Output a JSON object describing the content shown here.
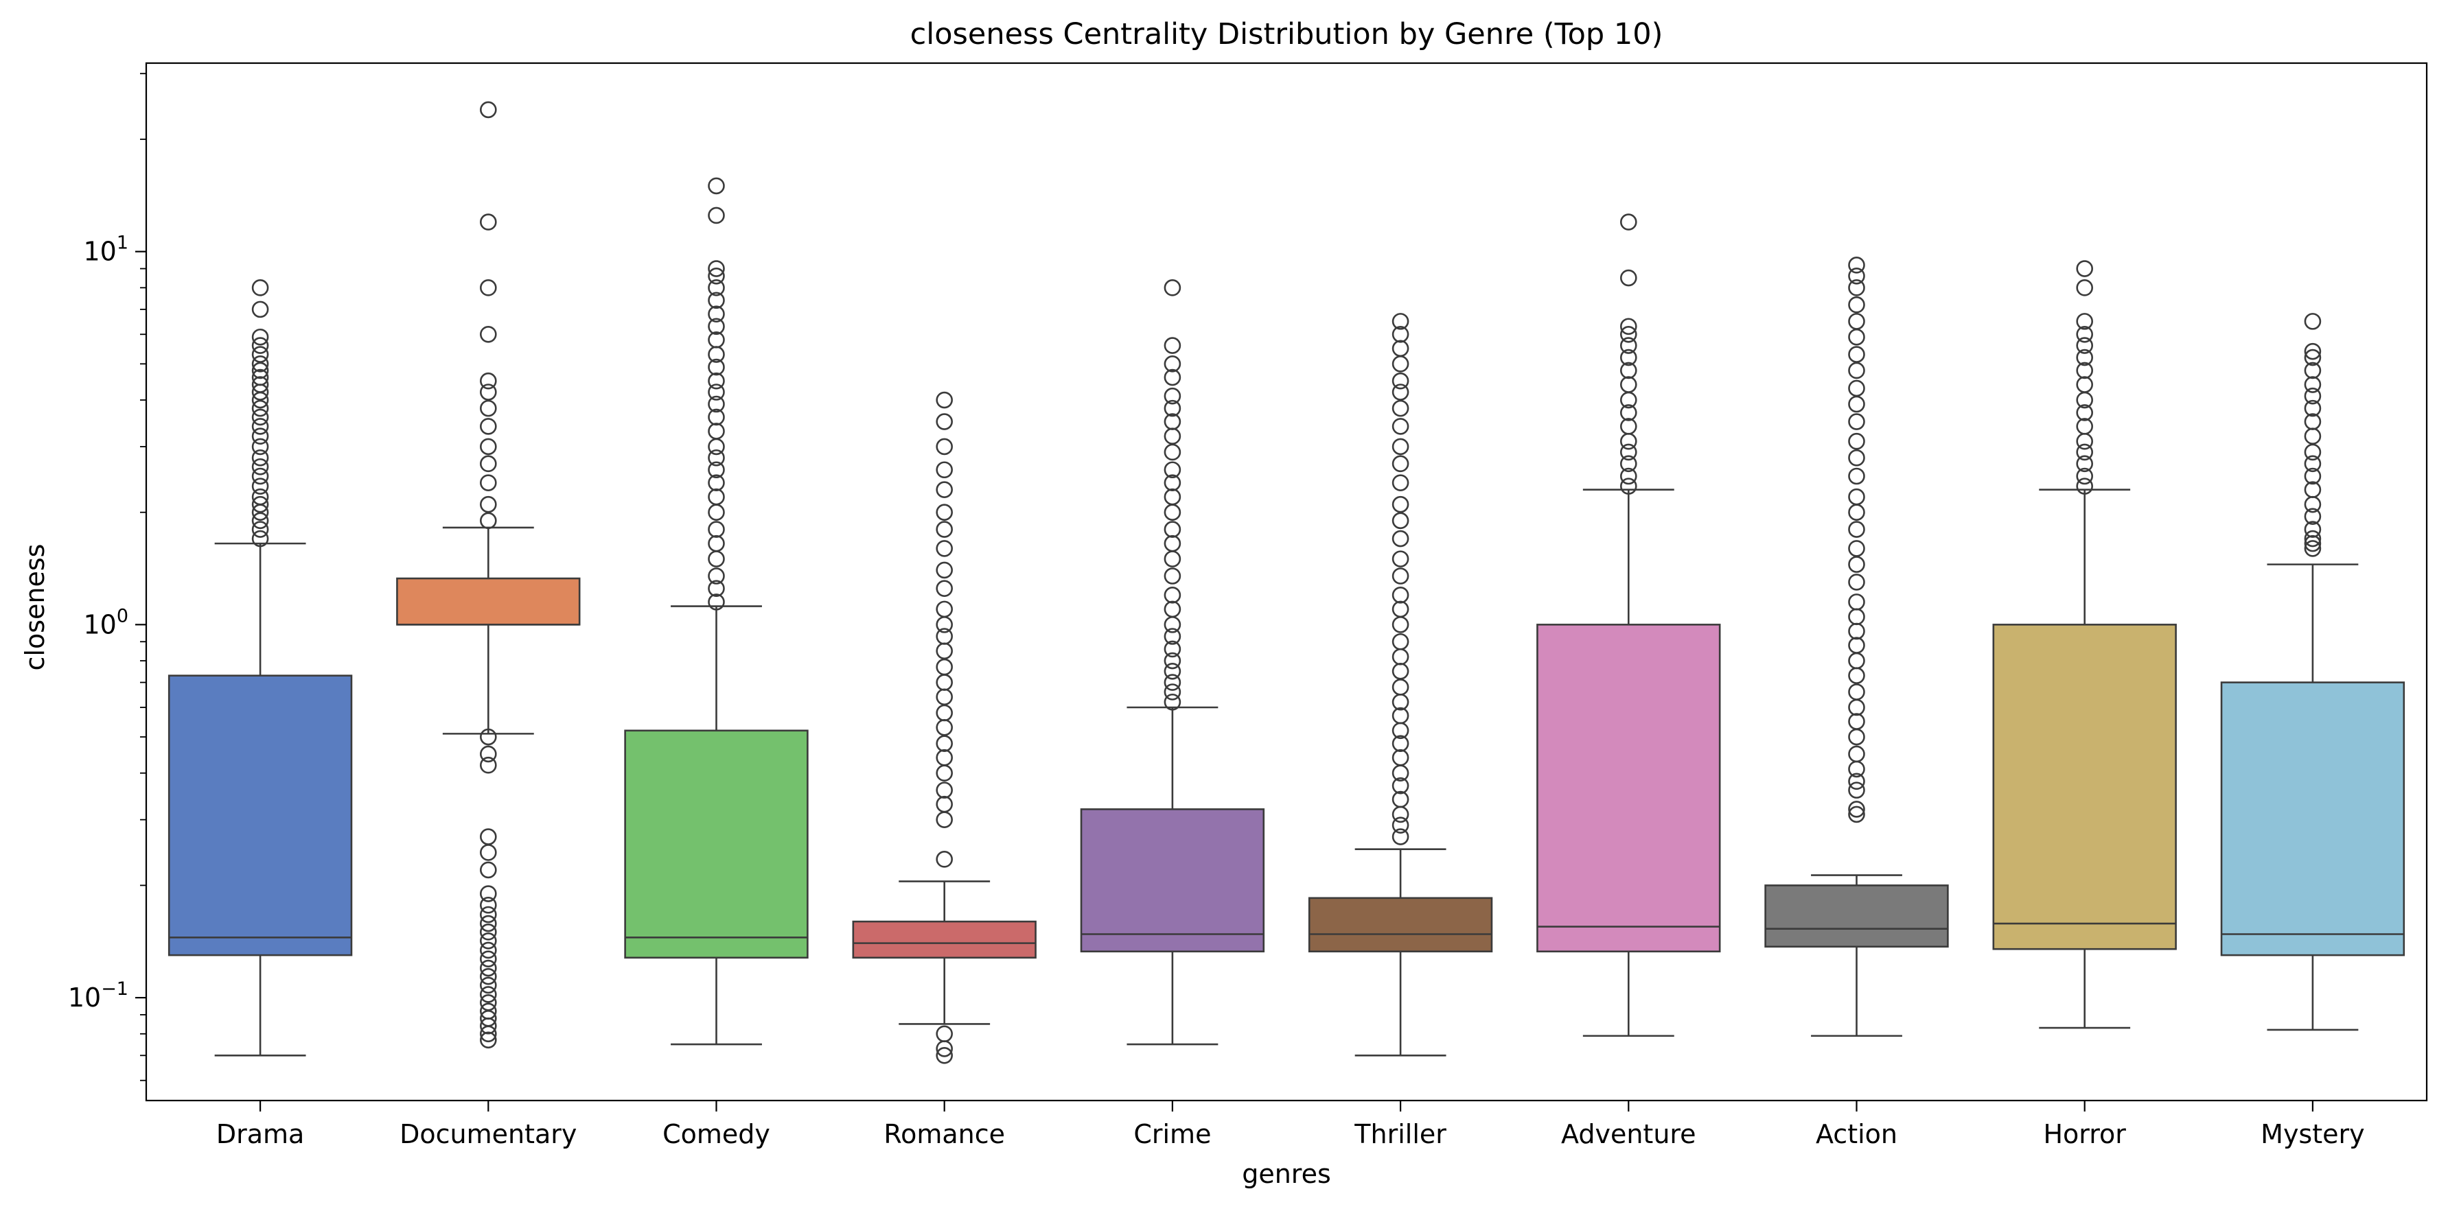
{
  "chart_data": {
    "type": "box",
    "title": "closeness Centrality Distribution by Genre (Top 10)",
    "xlabel": "genres",
    "ylabel": "closeness",
    "yscale": "log",
    "ylim": [
      0.053,
      32
    ],
    "ytick_labels": [
      {
        "value": 0.1,
        "base": "10",
        "exp": "−1"
      },
      {
        "value": 1,
        "base": "10",
        "exp": "0"
      },
      {
        "value": 10,
        "base": "10",
        "exp": "1"
      }
    ],
    "grid": false,
    "legend": "none",
    "categories": [
      "Drama",
      "Documentary",
      "Comedy",
      "Romance",
      "Crime",
      "Thriller",
      "Adventure",
      "Action",
      "Horror",
      "Mystery"
    ],
    "colors": [
      "#5a7dc0",
      "#de875c",
      "#74c16d",
      "#cb6a6a",
      "#9373ac",
      "#8c6548",
      "#d38abc",
      "#7a7a7a",
      "#c9b26e",
      "#8fc2d8"
    ],
    "boxes": [
      {
        "category": "Drama",
        "whislo": 0.07,
        "q1": 0.13,
        "med": 0.145,
        "q3": 0.73,
        "whishi": 1.65,
        "fliers": [
          1.7,
          1.8,
          1.9,
          2.0,
          2.1,
          2.2,
          2.35,
          2.5,
          2.65,
          2.8,
          3.0,
          3.2,
          3.4,
          3.6,
          3.8,
          4.0,
          4.2,
          4.4,
          4.6,
          4.8,
          5.0,
          5.3,
          5.6,
          5.9,
          7.0,
          8.0
        ]
      },
      {
        "category": "Documentary",
        "whislo": 0.51,
        "q1": 1.0,
        "med": 1.0,
        "q3": 1.33,
        "whishi": 1.82,
        "fliers": [
          0.077,
          0.08,
          0.084,
          0.088,
          0.092,
          0.097,
          0.102,
          0.108,
          0.114,
          0.12,
          0.127,
          0.134,
          0.142,
          0.15,
          0.158,
          0.167,
          0.177,
          0.19,
          0.22,
          0.245,
          0.27,
          0.42,
          0.45,
          0.5,
          1.9,
          2.1,
          2.4,
          2.7,
          3.0,
          3.4,
          3.8,
          4.2,
          4.5,
          6.0,
          8.0,
          12.0,
          24.0
        ]
      },
      {
        "category": "Comedy",
        "whislo": 0.075,
        "q1": 0.128,
        "med": 0.145,
        "q3": 0.52,
        "whishi": 1.12,
        "fliers": [
          1.15,
          1.25,
          1.35,
          1.5,
          1.65,
          1.8,
          2.0,
          2.2,
          2.4,
          2.6,
          2.8,
          3.0,
          3.3,
          3.6,
          3.9,
          4.2,
          4.5,
          4.9,
          5.3,
          5.8,
          6.3,
          6.8,
          7.4,
          8.0,
          8.6,
          9.0,
          12.5,
          15.0
        ]
      },
      {
        "category": "Romance",
        "whislo": 0.085,
        "q1": 0.128,
        "med": 0.14,
        "q3": 0.16,
        "whishi": 0.205,
        "fliers": [
          0.07,
          0.073,
          0.08,
          0.235,
          0.3,
          0.33,
          0.36,
          0.4,
          0.44,
          0.48,
          0.53,
          0.58,
          0.64,
          0.7,
          0.77,
          0.85,
          0.93,
          1.0,
          1.1,
          1.25,
          1.4,
          1.6,
          1.8,
          2.0,
          2.3,
          2.6,
          3.0,
          3.5,
          4.0
        ]
      },
      {
        "category": "Crime",
        "whislo": 0.075,
        "q1": 0.133,
        "med": 0.148,
        "q3": 0.32,
        "whishi": 0.6,
        "fliers": [
          0.62,
          0.66,
          0.7,
          0.75,
          0.8,
          0.86,
          0.93,
          1.0,
          1.1,
          1.2,
          1.35,
          1.5,
          1.65,
          1.8,
          2.0,
          2.2,
          2.4,
          2.6,
          2.9,
          3.2,
          3.5,
          3.8,
          4.1,
          4.6,
          5.0,
          5.6,
          8.0
        ]
      },
      {
        "category": "Thriller",
        "whislo": 0.07,
        "q1": 0.133,
        "med": 0.148,
        "q3": 0.185,
        "whishi": 0.25,
        "fliers": [
          0.27,
          0.29,
          0.31,
          0.34,
          0.37,
          0.4,
          0.44,
          0.48,
          0.52,
          0.57,
          0.62,
          0.68,
          0.75,
          0.82,
          0.9,
          1.0,
          1.1,
          1.2,
          1.35,
          1.5,
          1.7,
          1.9,
          2.1,
          2.4,
          2.7,
          3.0,
          3.4,
          3.8,
          4.2,
          4.5,
          5.0,
          5.5,
          6.0,
          6.5
        ]
      },
      {
        "category": "Adventure",
        "whislo": 0.079,
        "q1": 0.133,
        "med": 0.155,
        "q3": 1.0,
        "whishi": 2.3,
        "fliers": [
          2.35,
          2.5,
          2.7,
          2.9,
          3.1,
          3.4,
          3.7,
          4.0,
          4.4,
          4.8,
          5.2,
          5.6,
          6.0,
          6.3,
          8.5,
          12.0
        ]
      },
      {
        "category": "Action",
        "whislo": 0.079,
        "q1": 0.137,
        "med": 0.153,
        "q3": 0.2,
        "whishi": 0.213,
        "fliers": [
          0.31,
          0.32,
          0.36,
          0.38,
          0.41,
          0.45,
          0.5,
          0.55,
          0.6,
          0.66,
          0.73,
          0.8,
          0.88,
          0.96,
          1.05,
          1.15,
          1.3,
          1.45,
          1.6,
          1.8,
          2.0,
          2.2,
          2.5,
          2.8,
          3.1,
          3.5,
          3.9,
          4.3,
          4.8,
          5.3,
          5.9,
          6.5,
          7.2,
          8.0,
          8.6,
          9.2
        ]
      },
      {
        "category": "Horror",
        "whislo": 0.083,
        "q1": 0.135,
        "med": 0.158,
        "q3": 1.0,
        "whishi": 2.3,
        "fliers": [
          2.35,
          2.5,
          2.7,
          2.9,
          3.1,
          3.4,
          3.7,
          4.0,
          4.4,
          4.8,
          5.2,
          5.6,
          6.0,
          6.5,
          8.0,
          9.0
        ]
      },
      {
        "category": "Mystery",
        "whislo": 0.082,
        "q1": 0.13,
        "med": 0.148,
        "q3": 0.7,
        "whishi": 1.45,
        "fliers": [
          1.6,
          1.65,
          1.7,
          1.8,
          1.95,
          2.1,
          2.3,
          2.5,
          2.7,
          2.9,
          3.2,
          3.5,
          3.8,
          4.1,
          4.4,
          4.8,
          5.2,
          5.4,
          6.5
        ]
      }
    ]
  }
}
